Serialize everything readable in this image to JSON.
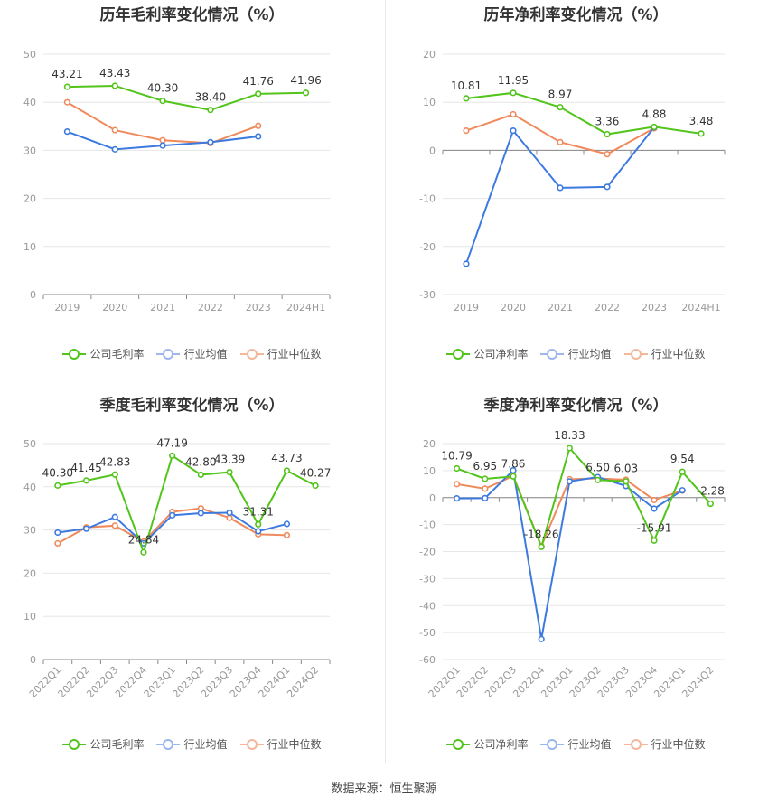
{
  "source_text": "数据来源：恒生聚源",
  "colors": {
    "company": "#52c41a",
    "avg": "#3d7ae0",
    "median": "#f08a5d",
    "axis": "#999999",
    "grid": "#e6e6e6"
  },
  "legend_net": [
    "公司净利率",
    "行业均值",
    "行业中位数"
  ],
  "legend_gross": [
    "公司毛利率",
    "行业均值",
    "行业中位数"
  ],
  "chart_data": [
    {
      "id": "c1",
      "type": "line",
      "title": "历年毛利率变化情况（%）",
      "categories": [
        "2019",
        "2020",
        "2021",
        "2022",
        "2023",
        "2024H1"
      ],
      "ylim": [
        0,
        50
      ],
      "yticks": [
        0,
        10,
        20,
        30,
        40,
        50
      ],
      "grid": true,
      "legend_position": "bottom",
      "series": [
        {
          "name": "公司毛利率",
          "key": "company",
          "values": [
            43.21,
            43.43,
            40.3,
            38.4,
            41.76,
            41.96
          ],
          "labels": [
            "43.21",
            "43.43",
            "40.30",
            "38.40",
            "41.76",
            "41.96"
          ]
        },
        {
          "name": "行业均值",
          "key": "avg",
          "values": [
            33.9,
            30.2,
            31.0,
            31.7,
            32.9,
            null
          ]
        },
        {
          "name": "行业中位数",
          "key": "median",
          "values": [
            40.0,
            34.2,
            32.1,
            31.5,
            35.1,
            null
          ]
        }
      ]
    },
    {
      "id": "c2",
      "type": "line",
      "title": "历年净利率变化情况（%）",
      "categories": [
        "2019",
        "2020",
        "2021",
        "2022",
        "2023",
        "2024H1"
      ],
      "ylim": [
        -30,
        20
      ],
      "yticks": [
        -30,
        -20,
        -10,
        0,
        10,
        20
      ],
      "grid": true,
      "legend_position": "bottom",
      "series": [
        {
          "name": "公司净利率",
          "key": "company",
          "values": [
            10.81,
            11.95,
            8.97,
            3.36,
            4.88,
            3.48
          ],
          "labels": [
            "10.81",
            "11.95",
            "8.97",
            "3.36",
            "4.88",
            "3.48"
          ]
        },
        {
          "name": "行业均值",
          "key": "avg",
          "values": [
            -23.6,
            4.1,
            -7.8,
            -7.6,
            4.8,
            null
          ]
        },
        {
          "name": "行业中位数",
          "key": "median",
          "values": [
            4.1,
            7.5,
            1.7,
            -0.8,
            4.6,
            null
          ]
        }
      ]
    },
    {
      "id": "c3",
      "type": "line",
      "title": "季度毛利率变化情况（%）",
      "categories": [
        "2022Q1",
        "2022Q2",
        "2022Q3",
        "2022Q4",
        "2023Q1",
        "2023Q2",
        "2023Q3",
        "2023Q4",
        "2024Q1",
        "2024Q2"
      ],
      "ylim": [
        0,
        50
      ],
      "yticks": [
        0,
        10,
        20,
        30,
        40,
        50
      ],
      "grid": true,
      "legend_position": "bottom",
      "series": [
        {
          "name": "公司毛利率",
          "key": "company",
          "values": [
            40.3,
            41.45,
            42.83,
            24.84,
            47.19,
            42.8,
            43.39,
            31.31,
            43.73,
            40.27
          ],
          "labels": [
            "40.30",
            "41.45",
            "42.83",
            "24.84",
            "47.19",
            "42.80",
            "43.39",
            "31.31",
            "43.73",
            "40.27"
          ]
        },
        {
          "name": "行业均值",
          "key": "avg",
          "values": [
            29.4,
            30.3,
            33.0,
            26.9,
            33.4,
            33.9,
            34.0,
            29.7,
            31.4,
            null
          ]
        },
        {
          "name": "行业中位数",
          "key": "median",
          "values": [
            26.9,
            30.6,
            31.0,
            27.3,
            34.2,
            35.0,
            32.8,
            29.0,
            28.8,
            null
          ]
        }
      ]
    },
    {
      "id": "c4",
      "type": "line",
      "title": "季度净利率变化情况（%）",
      "categories": [
        "2022Q1",
        "2022Q2",
        "2022Q3",
        "2022Q4",
        "2023Q1",
        "2023Q2",
        "2023Q3",
        "2023Q4",
        "2024Q1",
        "2024Q2"
      ],
      "ylim": [
        -60,
        20
      ],
      "yticks": [
        -60,
        -50,
        -40,
        -30,
        -20,
        -10,
        0,
        10,
        20
      ],
      "grid": true,
      "legend_position": "bottom",
      "series": [
        {
          "name": "公司净利率",
          "key": "company",
          "values": [
            10.79,
            6.95,
            7.86,
            -18.26,
            18.33,
            6.5,
            6.03,
            -15.91,
            9.54,
            -2.28
          ],
          "labels": [
            "10.79",
            "6.95",
            "7.86",
            "-18.26",
            "18.33",
            "6.50",
            "6.03",
            "-15.91",
            "9.54",
            "-2.28"
          ]
        },
        {
          "name": "行业均值",
          "key": "avg",
          "values": [
            -0.3,
            -0.2,
            10.1,
            -52.4,
            6.0,
            7.6,
            4.3,
            -4.1,
            2.7,
            null
          ]
        },
        {
          "name": "行业中位数",
          "key": "median",
          "values": [
            5.0,
            3.3,
            8.0,
            -18.0,
            6.8,
            7.1,
            6.6,
            -0.9,
            2.6,
            null
          ]
        }
      ]
    }
  ]
}
